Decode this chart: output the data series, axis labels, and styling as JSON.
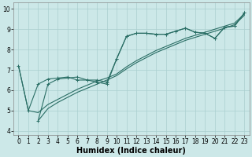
{
  "bg_color": "#cce8e8",
  "line_color": "#2a6e65",
  "grid_color": "#aacfcf",
  "xlabel": "Humidex (Indice chaleur)",
  "xlabel_fontsize": 7,
  "tick_fontsize": 5.5,
  "xlim": [
    -0.5,
    23.5
  ],
  "ylim": [
    3.8,
    10.3
  ],
  "xticks": [
    0,
    1,
    2,
    3,
    4,
    5,
    6,
    7,
    8,
    9,
    10,
    11,
    12,
    13,
    14,
    15,
    16,
    17,
    18,
    19,
    20,
    21,
    22,
    23
  ],
  "yticks": [
    4,
    5,
    6,
    7,
    8,
    9,
    10
  ],
  "line_lw": 0.8,
  "marker_size": 2.5,
  "line1_x": [
    0,
    1,
    2,
    3,
    4,
    5,
    6,
    7,
    8,
    9,
    10,
    11,
    12,
    13,
    14,
    15,
    16,
    17,
    18,
    19,
    20,
    21,
    22,
    23
  ],
  "line1_y": [
    7.2,
    5.0,
    6.3,
    6.55,
    6.6,
    6.65,
    6.5,
    6.5,
    6.4,
    6.3,
    7.55,
    8.65,
    8.8,
    8.8,
    8.75,
    8.75,
    8.9,
    9.05,
    8.85,
    8.8,
    8.55,
    9.1,
    9.15,
    9.8
  ],
  "line2_x": [
    0,
    1,
    2,
    3,
    4,
    5,
    6,
    7,
    8,
    9,
    10,
    11,
    12,
    13,
    14,
    15,
    16,
    17,
    18,
    19,
    20,
    21,
    22,
    23
  ],
  "line2_y": [
    7.2,
    5.0,
    4.9,
    5.3,
    5.55,
    5.8,
    6.05,
    6.25,
    6.45,
    6.6,
    6.8,
    7.15,
    7.45,
    7.7,
    7.95,
    8.15,
    8.35,
    8.55,
    8.7,
    8.85,
    9.0,
    9.15,
    9.3,
    9.75
  ],
  "line3_x": [
    2,
    3,
    4,
    5,
    6,
    7,
    8,
    9,
    10,
    11,
    12,
    13,
    14,
    15,
    16,
    17,
    18,
    19,
    20,
    21,
    22,
    23
  ],
  "line3_y": [
    4.5,
    5.1,
    5.4,
    5.65,
    5.9,
    6.1,
    6.3,
    6.5,
    6.72,
    7.05,
    7.35,
    7.6,
    7.85,
    8.05,
    8.25,
    8.45,
    8.6,
    8.75,
    8.9,
    9.05,
    9.22,
    9.68
  ],
  "line4_x": [
    2,
    3,
    4,
    5,
    6,
    7,
    8,
    9,
    10,
    11,
    12,
    13,
    14,
    15,
    16,
    17,
    18,
    19,
    20,
    21,
    22,
    23
  ],
  "line4_y": [
    4.5,
    6.3,
    6.55,
    6.6,
    6.65,
    6.5,
    6.5,
    6.4,
    7.55,
    8.65,
    8.8,
    8.8,
    8.75,
    8.75,
    8.9,
    9.05,
    8.85,
    8.8,
    8.55,
    9.1,
    9.15,
    9.8
  ]
}
